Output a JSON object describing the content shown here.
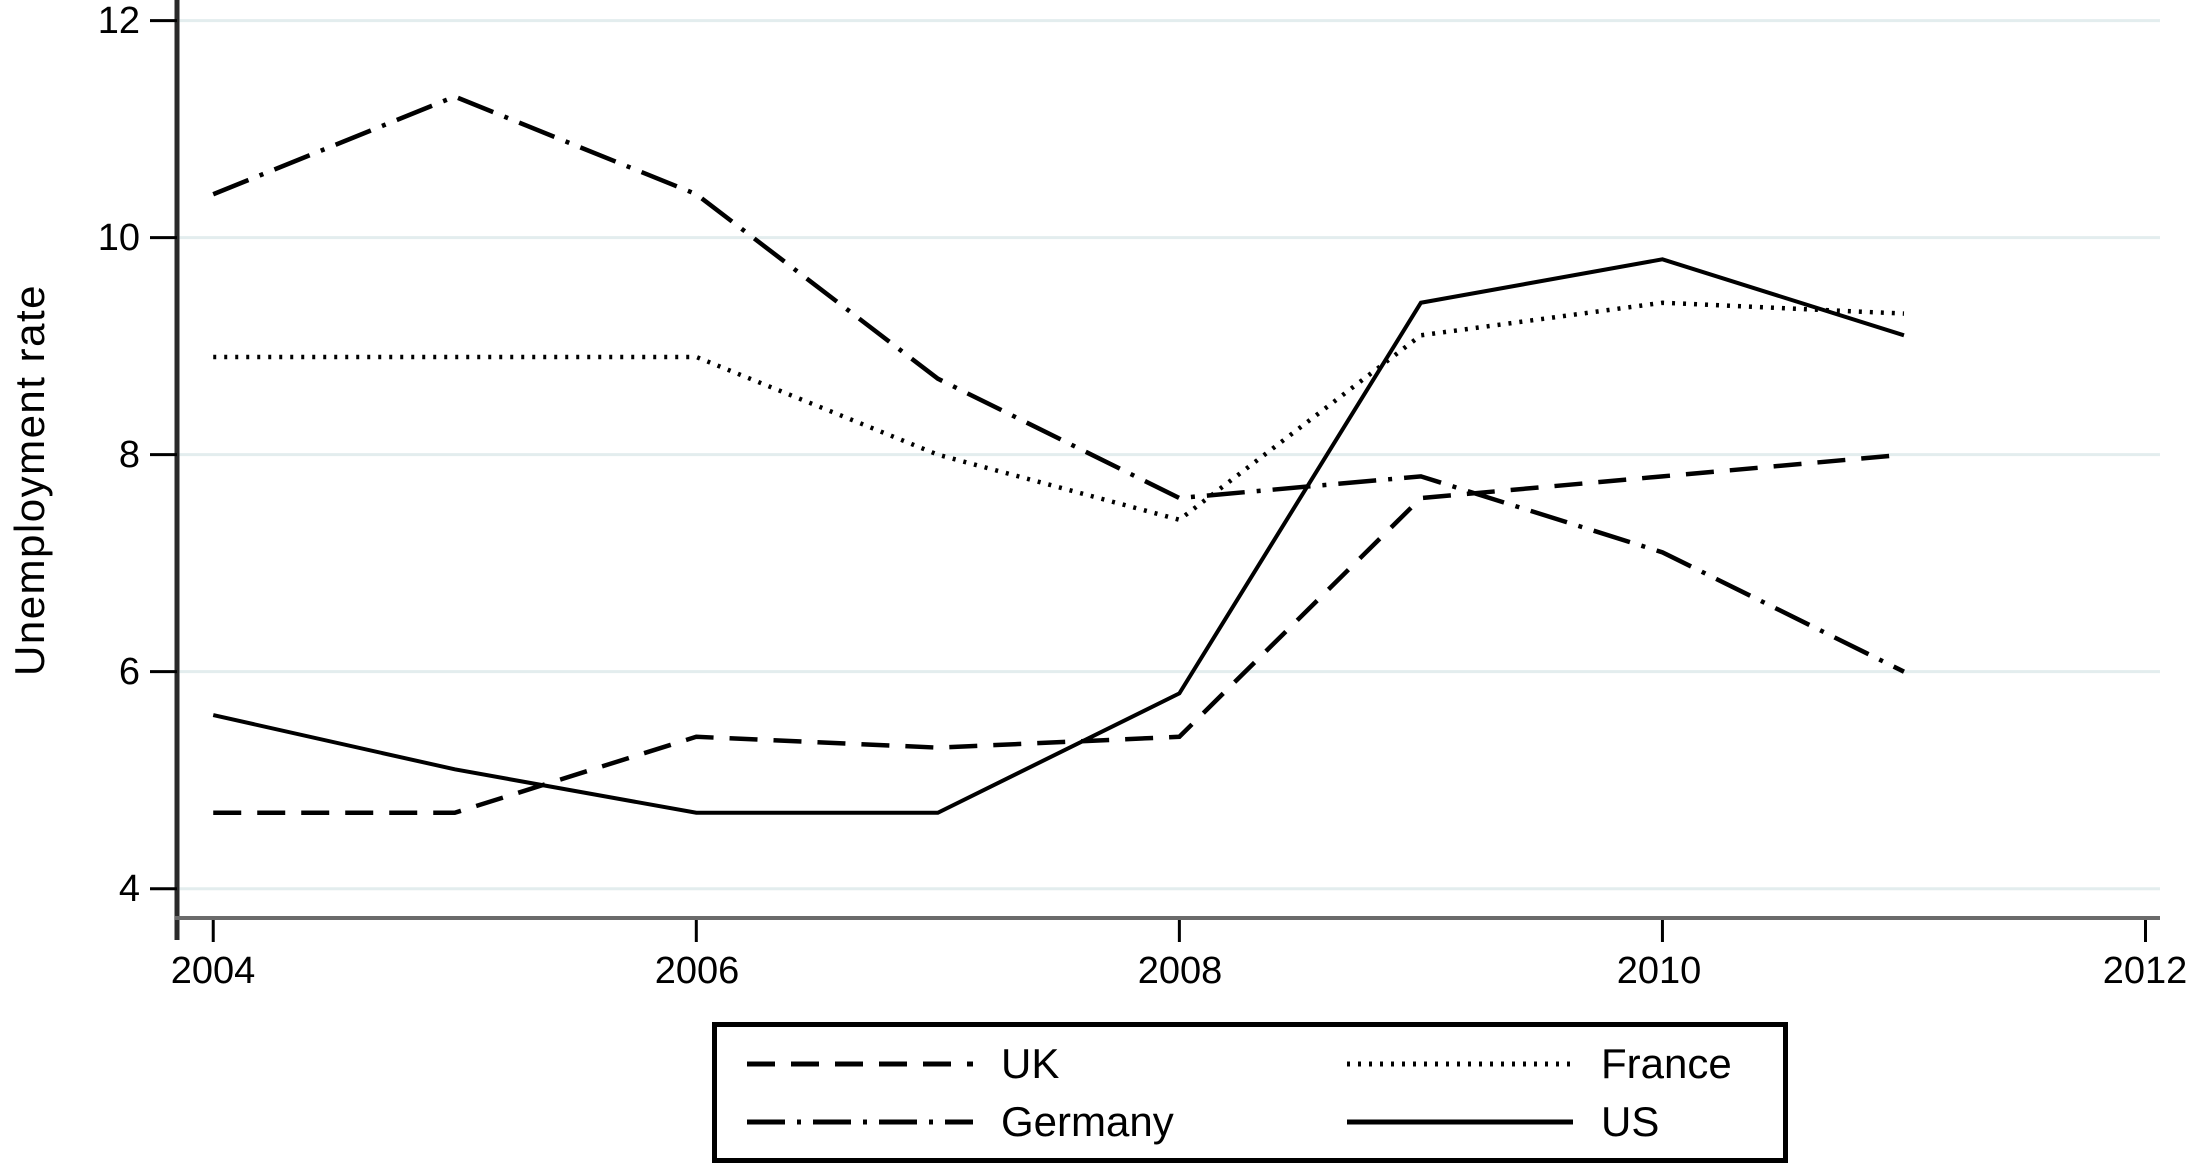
{
  "chart_data": {
    "type": "line",
    "title": "",
    "xlabel": "",
    "ylabel": "Unemployment rate",
    "x": [
      2004,
      2005,
      2006,
      2007,
      2008,
      2009,
      2010,
      2011
    ],
    "x_ticks": [
      "2004",
      "2006",
      "2008",
      "2010",
      "2012"
    ],
    "x_tick_values": [
      2004,
      2006,
      2008,
      2010,
      2012
    ],
    "y_ticks": [
      "12",
      "10",
      "8",
      "6",
      "4"
    ],
    "y_tick_values": [
      12,
      10,
      8,
      6,
      4
    ],
    "xlim": [
      2003.85,
      2012.06
    ],
    "ylim": [
      3.73,
      12.19
    ],
    "grid": true,
    "legend_position": "bottom-center",
    "series": [
      {
        "name": "UK",
        "style": "dashed",
        "values": [
          4.7,
          4.7,
          5.4,
          5.3,
          5.4,
          7.6,
          7.8,
          8.0
        ]
      },
      {
        "name": "France",
        "style": "dotted",
        "values": [
          8.9,
          8.9,
          8.9,
          8.0,
          7.4,
          9.1,
          9.4,
          9.3
        ]
      },
      {
        "name": "Germany",
        "style": "dash-dot",
        "values": [
          10.4,
          11.3,
          10.4,
          8.7,
          7.6,
          7.8,
          7.1,
          6.0
        ]
      },
      {
        "name": "US",
        "style": "solid",
        "values": [
          5.6,
          5.1,
          4.7,
          4.7,
          5.8,
          9.4,
          9.8,
          9.1
        ]
      }
    ],
    "colors": {
      "line": "#000000",
      "grid": "#e3edee",
      "x_axis": "#6b6b6b",
      "y_axis": "#2a2a2a",
      "tick": "#000000"
    }
  }
}
